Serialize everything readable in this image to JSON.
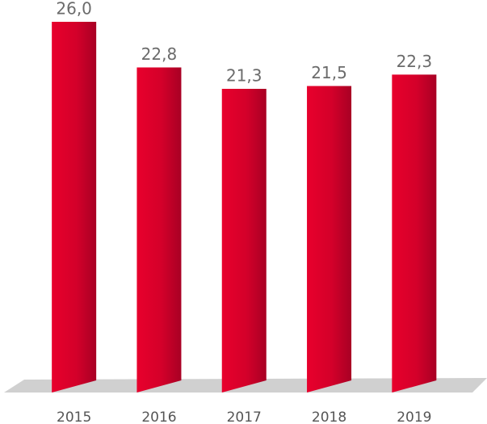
{
  "chart_data": {
    "type": "bar",
    "categories": [
      "2015",
      "2016",
      "2017",
      "2018",
      "2019"
    ],
    "values": [
      26.0,
      22.8,
      21.3,
      21.5,
      22.3
    ],
    "value_labels": [
      "26,0",
      "22,8",
      "21,3",
      "21,5",
      "22,3"
    ],
    "color": "#d9002b",
    "ylim": [
      0,
      26
    ]
  }
}
